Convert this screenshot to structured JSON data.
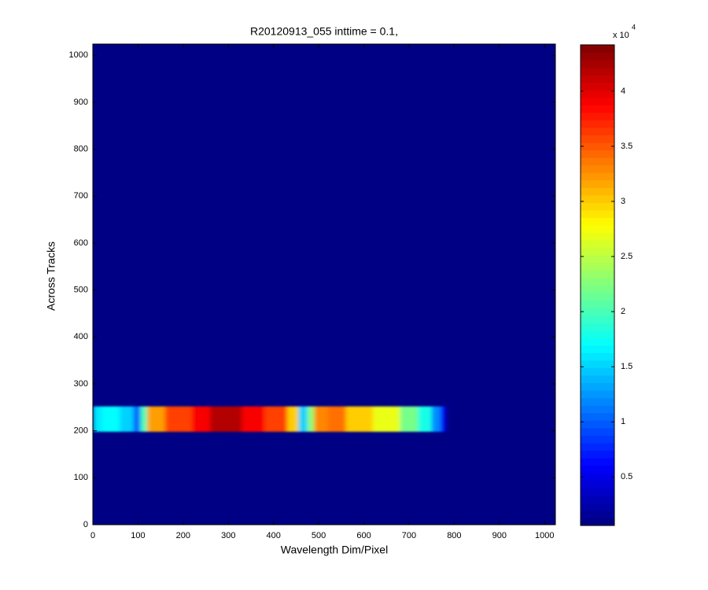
{
  "chart_data": {
    "type": "heatmap",
    "title": "R20120913_055 inttime = 0.1,",
    "x_label": "Wavelength Dim/Pixel",
    "y_label": "Across Tracks",
    "xlim": [
      0,
      1024
    ],
    "ylim": [
      0,
      1024
    ],
    "xticks": [
      0,
      100,
      200,
      300,
      400,
      500,
      600,
      700,
      800,
      900,
      1000
    ],
    "yticks": [
      0,
      100,
      200,
      300,
      400,
      500,
      600,
      700,
      800,
      900,
      1000
    ],
    "colormap": "jet",
    "clim": [
      0.06,
      4.42
    ],
    "cticks": [
      0.5,
      1,
      1.5,
      2,
      2.5,
      3,
      3.5,
      4
    ],
    "colorbar_multiplier": {
      "base": "x 10",
      "exponent": "4"
    },
    "background_value": 0.08,
    "band": {
      "y": [
        198,
        252
      ],
      "x": [
        0,
        20,
        60,
        90,
        105,
        120,
        160,
        220,
        260,
        330,
        380,
        430,
        455,
        475,
        490,
        520,
        560,
        620,
        680,
        720,
        750,
        770,
        780
      ],
      "values": [
        1.6,
        1.7,
        1.5,
        1.0,
        2.0,
        3.2,
        3.6,
        3.9,
        4.2,
        3.9,
        3.6,
        3.0,
        1.5,
        2.3,
        3.3,
        3.4,
        3.0,
        2.7,
        2.2,
        1.8,
        1.2,
        0.6
      ]
    }
  }
}
